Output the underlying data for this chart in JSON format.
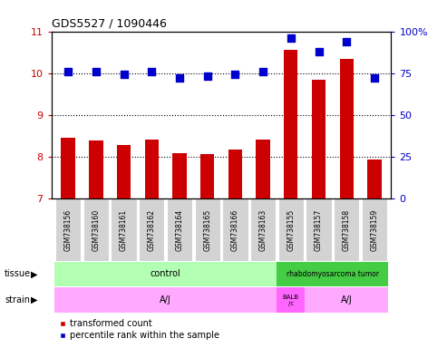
{
  "title": "GDS5527 / 1090446",
  "samples": [
    "GSM738156",
    "GSM738160",
    "GSM738161",
    "GSM738162",
    "GSM738164",
    "GSM738165",
    "GSM738166",
    "GSM738163",
    "GSM738155",
    "GSM738157",
    "GSM738158",
    "GSM738159"
  ],
  "transformed_count": [
    8.45,
    8.38,
    8.27,
    8.4,
    8.08,
    8.07,
    8.18,
    8.4,
    10.55,
    9.85,
    10.35,
    7.93
  ],
  "percentile_rank": [
    76,
    76,
    74,
    76,
    72,
    73,
    74,
    76,
    96,
    88,
    94,
    72
  ],
  "ylim_left": [
    7,
    11
  ],
  "ylim_right": [
    0,
    100
  ],
  "yticks_left": [
    7,
    8,
    9,
    10,
    11
  ],
  "yticks_right": [
    0,
    25,
    50,
    75,
    100
  ],
  "ytick_labels_right": [
    "0",
    "25",
    "50",
    "75",
    "100%"
  ],
  "bar_color": "#cc0000",
  "dot_color": "#0000cc",
  "grid_color": "#000000",
  "bar_width": 0.5,
  "dot_size": 28,
  "xlabel_color": "#cc0000",
  "ylabel_right_color": "#0000cc",
  "bg_color": "#ffffff",
  "tick_label_bg": "#d3d3d3",
  "tissue_control_color": "#b3ffb3",
  "tissue_tumor_color": "#44cc44",
  "strain_aj_color": "#ffaaff",
  "strain_balb_color": "#ff66ff",
  "legend_red_label": "transformed count",
  "legend_blue_label": "percentile rank within the sample"
}
